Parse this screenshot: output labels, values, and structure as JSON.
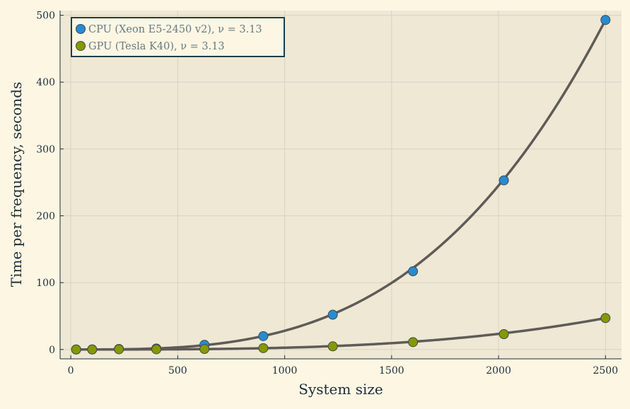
{
  "chart_data": {
    "type": "scatter",
    "xlabel": "System size",
    "ylabel": "Time per frequency, seconds",
    "xlim": [
      -50,
      2575
    ],
    "ylim": [
      -14,
      507
    ],
    "xticks": [
      0,
      500,
      1000,
      1500,
      2000,
      2500
    ],
    "yticks": [
      0,
      100,
      200,
      300,
      400,
      500
    ],
    "grid": true,
    "legend_position": "top-left",
    "fit_exponent": 3.13,
    "series": [
      {
        "name": "CPU (Xeon E5-2450 v2), ν = 3.13",
        "color": "#268bd2",
        "x": [
          25,
          100,
          225,
          400,
          625,
          900,
          1225,
          1600,
          2025,
          2500
        ],
        "y": [
          0.0,
          0.1,
          0.8,
          1.5,
          7.0,
          20.0,
          52.0,
          117.0,
          253.0,
          493.0
        ]
      },
      {
        "name": "GPU (Tesla K40), ν = 3.13",
        "color": "#859900",
        "x": [
          25,
          100,
          225,
          400,
          625,
          900,
          1225,
          1600,
          2025,
          2500
        ],
        "y": [
          0.0,
          0.0,
          0.3,
          0.3,
          0.8,
          2.0,
          4.7,
          11.0,
          23.0,
          47.0
        ]
      }
    ],
    "fit_color": "#5f5b57"
  }
}
